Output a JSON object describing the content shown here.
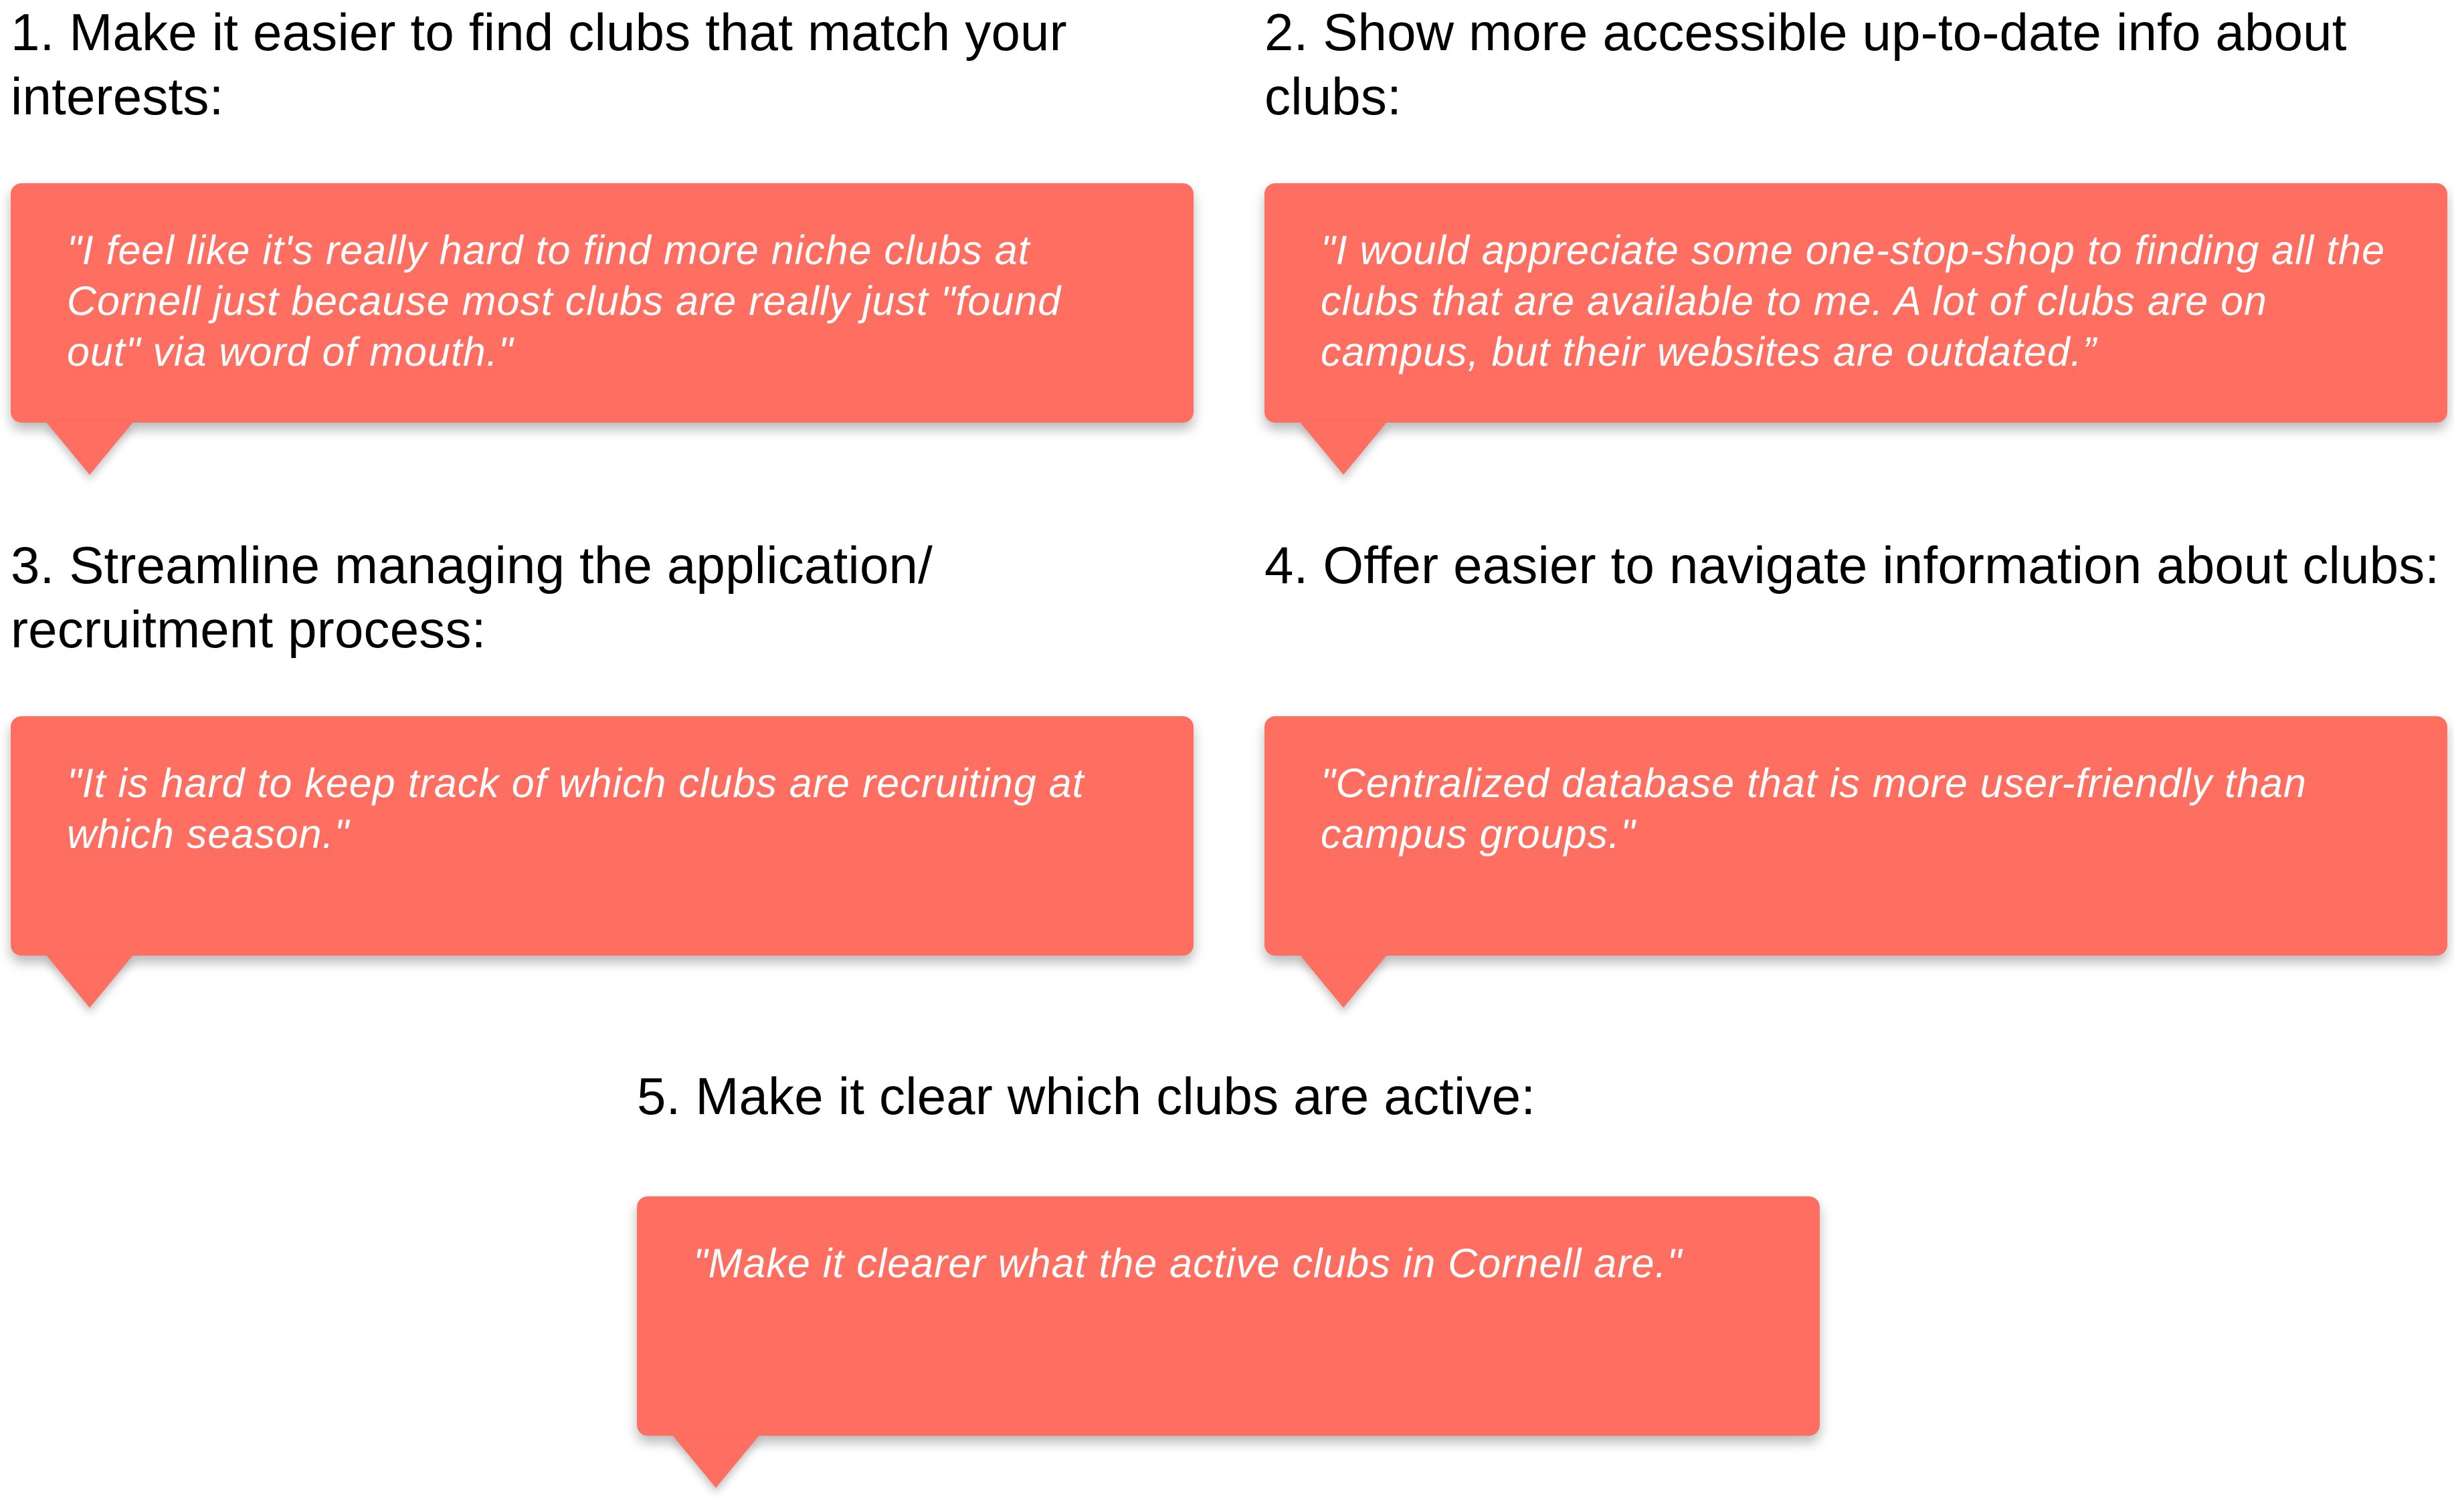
{
  "sections": [
    {
      "heading": "1. Make it easier to find clubs that match your interests:",
      "quote": "\"I feel like it's really hard to find more niche clubs at Cornell just because most clubs are really just \"found out\" via word of mouth.\""
    },
    {
      "heading": "2. Show more accessible up-to-date info about clubs:",
      "quote": "\"I would appreciate some one-stop-shop to finding all the clubs that are available to me. A lot of clubs are on campus, but their websites are outdated.”"
    },
    {
      "heading": "3. Streamline managing the application/ recruitment process:",
      "quote": "\"It is hard to keep track of which clubs are recruiting at which season.\""
    },
    {
      "heading": "4. Offer easier to navigate information about clubs:",
      "quote": "\"Centralized database that is more user-friendly than campus groups.\""
    },
    {
      "heading": "5. Make it clear which clubs are active:",
      "quote": "\"Make it clearer what the active clubs in Cornell are.\""
    }
  ],
  "colors": {
    "bubble": "#ff6f61",
    "heading_text": "#000000",
    "quote_text": "#ffffff"
  }
}
